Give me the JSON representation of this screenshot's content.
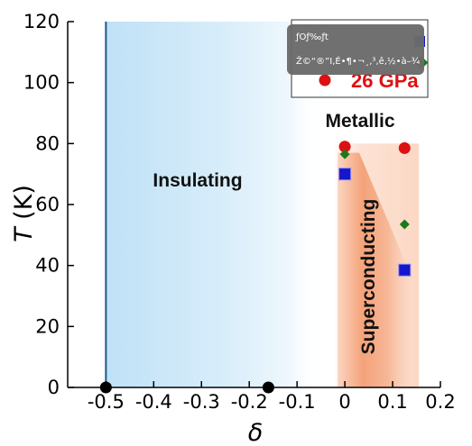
{
  "chart_data": {
    "type": "scatter",
    "title": "",
    "xlabel": "δ",
    "ylabel_symbol": "T",
    "ylabel_unit": " (K)",
    "xlim": [
      -0.58,
      0.2
    ],
    "ylim": [
      0,
      120
    ],
    "xticks": [
      -0.5,
      -0.4,
      -0.3,
      -0.2,
      -0.1,
      0,
      0.1,
      0.2
    ],
    "xtick_labels": [
      "-0.5",
      "-0.4",
      "-0.3",
      "-0.2",
      "-0.1",
      "0",
      "0.1",
      "0.2"
    ],
    "yticks": [
      0,
      20,
      40,
      60,
      80,
      100,
      120
    ],
    "ytick_labels": [
      "0",
      "20",
      "40",
      "60",
      "80",
      "100",
      "120"
    ],
    "regions": {
      "insulating": "Insulating",
      "metallic": "Metallic",
      "superconducting": "Superconducting"
    },
    "boundary_line_x": -0.5,
    "series": [
      {
        "name": "",
        "marker": "circle",
        "color": "#000000",
        "points": [
          [
            -0.5,
            0
          ],
          [
            -0.16,
            0
          ]
        ]
      },
      {
        "name": "26 GPa",
        "marker": "circle",
        "color": "#dd1111",
        "points": [
          [
            0,
            79
          ],
          [
            0.125,
            78.5
          ]
        ]
      },
      {
        "name": "",
        "marker": "diamond",
        "color": "#1b7a1b",
        "points": [
          [
            0,
            76.5
          ],
          [
            0.125,
            53.5
          ]
        ]
      },
      {
        "name": "",
        "marker": "square",
        "color": "#1515cc",
        "points": [
          [
            0,
            70
          ],
          [
            0.125,
            38.5
          ]
        ]
      }
    ],
    "legend_position": "top-right",
    "grid": false
  },
  "tooltip": {
    "line1": "ƒOƒ‰ƒt",
    "line2": "Ž©“®”I‚É•¶•¬¸‚³‚ê‚½•à–¾"
  }
}
